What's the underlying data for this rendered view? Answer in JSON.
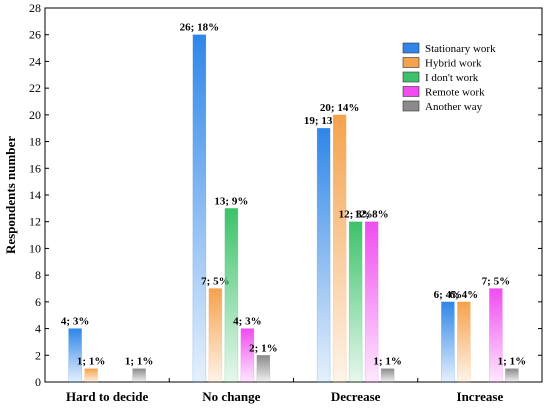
{
  "chart_data": {
    "type": "bar",
    "ylabel": "Respondents  number",
    "xlabel": "",
    "ylim": [
      0,
      28
    ],
    "yticks": [
      0,
      2,
      4,
      6,
      8,
      10,
      12,
      14,
      16,
      18,
      20,
      22,
      24,
      26,
      28
    ],
    "grid": false,
    "legend_position": "top-right",
    "categories": [
      "Hard to decide",
      "No change",
      "Decrease",
      "Increase"
    ],
    "series": [
      {
        "name": "Stationary work",
        "color": "#2f86e8",
        "values": [
          4,
          26,
          19,
          6
        ],
        "labels": [
          "4; 3%",
          "26; 18%",
          "19; 13%",
          "6; 4%"
        ]
      },
      {
        "name": "Hybrid work",
        "color": "#f5a24c",
        "values": [
          1,
          7,
          20,
          6
        ],
        "labels": [
          "1; 1%",
          "7; 5%",
          "20; 14%",
          "6; 4%"
        ]
      },
      {
        "name": "I don't work",
        "color": "#3cc26a",
        "values": [
          0,
          13,
          12,
          0
        ],
        "labels": [
          "",
          "13; 9%",
          "12; 8%",
          ""
        ]
      },
      {
        "name": "Remote work",
        "color": "#f04cf0",
        "values": [
          0,
          4,
          12,
          7
        ],
        "labels": [
          "",
          "4; 3%",
          "12; 8%",
          "7; 5%"
        ]
      },
      {
        "name": "Another way",
        "color": "#8a8a8a",
        "values": [
          1,
          2,
          1,
          1
        ],
        "labels": [
          "1; 1%",
          "2; 1%",
          "1; 1%",
          "1; 1%"
        ]
      }
    ]
  }
}
